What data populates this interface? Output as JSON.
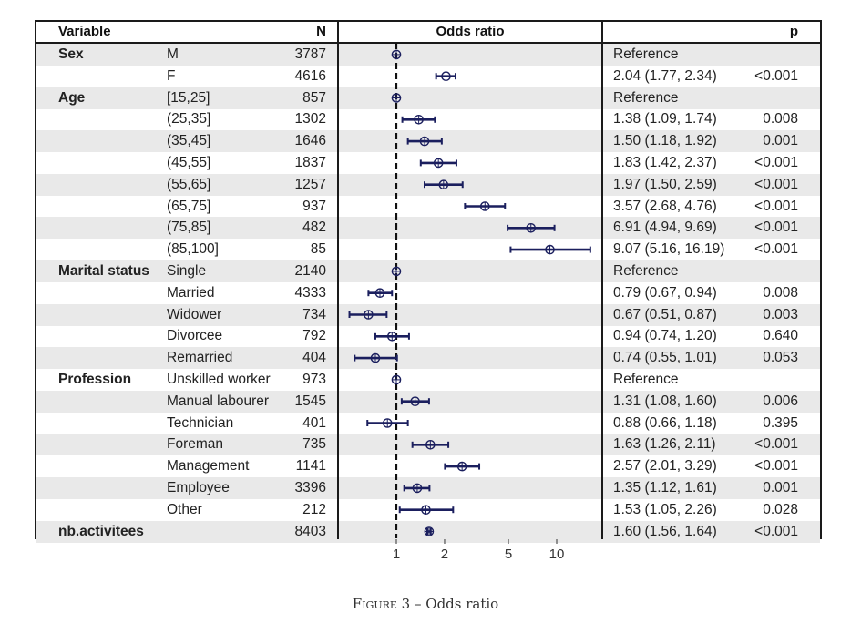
{
  "header": {
    "variable": "Variable",
    "n": "N",
    "odds_ratio": "Odds ratio",
    "p": "p"
  },
  "caption": {
    "figure": "Figure 3",
    "sep": " – ",
    "text": "Odds ratio"
  },
  "chart_data": {
    "type": "forest",
    "xscale": "log",
    "xticks": [
      1,
      2,
      5,
      10
    ],
    "reference_line": 1,
    "colors": {
      "point": "#1b1f5e",
      "ci": "#1b1f5e",
      "reference": "#111111"
    },
    "rows": [
      {
        "variable": "Sex",
        "level": "M",
        "n": "3787",
        "or": 1,
        "lo": null,
        "hi": null,
        "estimate": "Reference",
        "p": ""
      },
      {
        "variable": "",
        "level": "F",
        "n": "4616",
        "or": 2.04,
        "lo": 1.77,
        "hi": 2.34,
        "estimate": "2.04 (1.77, 2.34)",
        "p": "<0.001"
      },
      {
        "variable": "Age",
        "level": "[15,25]",
        "n": "857",
        "or": 1,
        "lo": null,
        "hi": null,
        "estimate": "Reference",
        "p": ""
      },
      {
        "variable": "",
        "level": "(25,35]",
        "n": "1302",
        "or": 1.38,
        "lo": 1.09,
        "hi": 1.74,
        "estimate": "1.38 (1.09, 1.74)",
        "p": "0.008"
      },
      {
        "variable": "",
        "level": "(35,45]",
        "n": "1646",
        "or": 1.5,
        "lo": 1.18,
        "hi": 1.92,
        "estimate": "1.50 (1.18, 1.92)",
        "p": "0.001"
      },
      {
        "variable": "",
        "level": "(45,55]",
        "n": "1837",
        "or": 1.83,
        "lo": 1.42,
        "hi": 2.37,
        "estimate": "1.83 (1.42, 2.37)",
        "p": "<0.001"
      },
      {
        "variable": "",
        "level": "(55,65]",
        "n": "1257",
        "or": 1.97,
        "lo": 1.5,
        "hi": 2.59,
        "estimate": "1.97 (1.50, 2.59)",
        "p": "<0.001"
      },
      {
        "variable": "",
        "level": "(65,75]",
        "n": "937",
        "or": 3.57,
        "lo": 2.68,
        "hi": 4.76,
        "estimate": "3.57 (2.68, 4.76)",
        "p": "<0.001"
      },
      {
        "variable": "",
        "level": "(75,85]",
        "n": "482",
        "or": 6.91,
        "lo": 4.94,
        "hi": 9.69,
        "estimate": "6.91 (4.94, 9.69)",
        "p": "<0.001"
      },
      {
        "variable": "",
        "level": "(85,100]",
        "n": "85",
        "or": 9.07,
        "lo": 5.16,
        "hi": 16.19,
        "estimate": "9.07 (5.16, 16.19)",
        "p": "<0.001"
      },
      {
        "variable": "Marital status",
        "level": "Single",
        "n": "2140",
        "or": 1,
        "lo": null,
        "hi": null,
        "estimate": "Reference",
        "p": ""
      },
      {
        "variable": "",
        "level": "Married",
        "n": "4333",
        "or": 0.79,
        "lo": 0.67,
        "hi": 0.94,
        "estimate": "0.79 (0.67, 0.94)",
        "p": "0.008"
      },
      {
        "variable": "",
        "level": "Widower",
        "n": "734",
        "or": 0.67,
        "lo": 0.51,
        "hi": 0.87,
        "estimate": "0.67 (0.51, 0.87)",
        "p": "0.003"
      },
      {
        "variable": "",
        "level": "Divorcee",
        "n": "792",
        "or": 0.94,
        "lo": 0.74,
        "hi": 1.2,
        "estimate": "0.94 (0.74, 1.20)",
        "p": "0.640"
      },
      {
        "variable": "",
        "level": "Remarried",
        "n": "404",
        "or": 0.74,
        "lo": 0.55,
        "hi": 1.01,
        "estimate": "0.74 (0.55, 1.01)",
        "p": "0.053"
      },
      {
        "variable": "Profession",
        "level": "Unskilled worker",
        "n": "973",
        "or": 1,
        "lo": null,
        "hi": null,
        "estimate": "Reference",
        "p": ""
      },
      {
        "variable": "",
        "level": "Manual labourer",
        "n": "1545",
        "or": 1.31,
        "lo": 1.08,
        "hi": 1.6,
        "estimate": "1.31 (1.08, 1.60)",
        "p": "0.006"
      },
      {
        "variable": "",
        "level": "Technician",
        "n": "401",
        "or": 0.88,
        "lo": 0.66,
        "hi": 1.18,
        "estimate": "0.88 (0.66, 1.18)",
        "p": "0.395"
      },
      {
        "variable": "",
        "level": "Foreman",
        "n": "735",
        "or": 1.63,
        "lo": 1.26,
        "hi": 2.11,
        "estimate": "1.63 (1.26, 2.11)",
        "p": "<0.001"
      },
      {
        "variable": "",
        "level": "Management",
        "n": "1141",
        "or": 2.57,
        "lo": 2.01,
        "hi": 3.29,
        "estimate": "2.57 (2.01, 3.29)",
        "p": "<0.001"
      },
      {
        "variable": "",
        "level": "Employee",
        "n": "3396",
        "or": 1.35,
        "lo": 1.12,
        "hi": 1.61,
        "estimate": "1.35 (1.12, 1.61)",
        "p": "0.001"
      },
      {
        "variable": "",
        "level": "Other",
        "n": "212",
        "or": 1.53,
        "lo": 1.05,
        "hi": 2.26,
        "estimate": "1.53 (1.05, 2.26)",
        "p": "0.028"
      },
      {
        "variable": "nb.activitees",
        "level": "",
        "n": "8403",
        "or": 1.6,
        "lo": 1.56,
        "hi": 1.64,
        "estimate": "1.60 (1.56, 1.64)",
        "p": "<0.001"
      }
    ]
  }
}
